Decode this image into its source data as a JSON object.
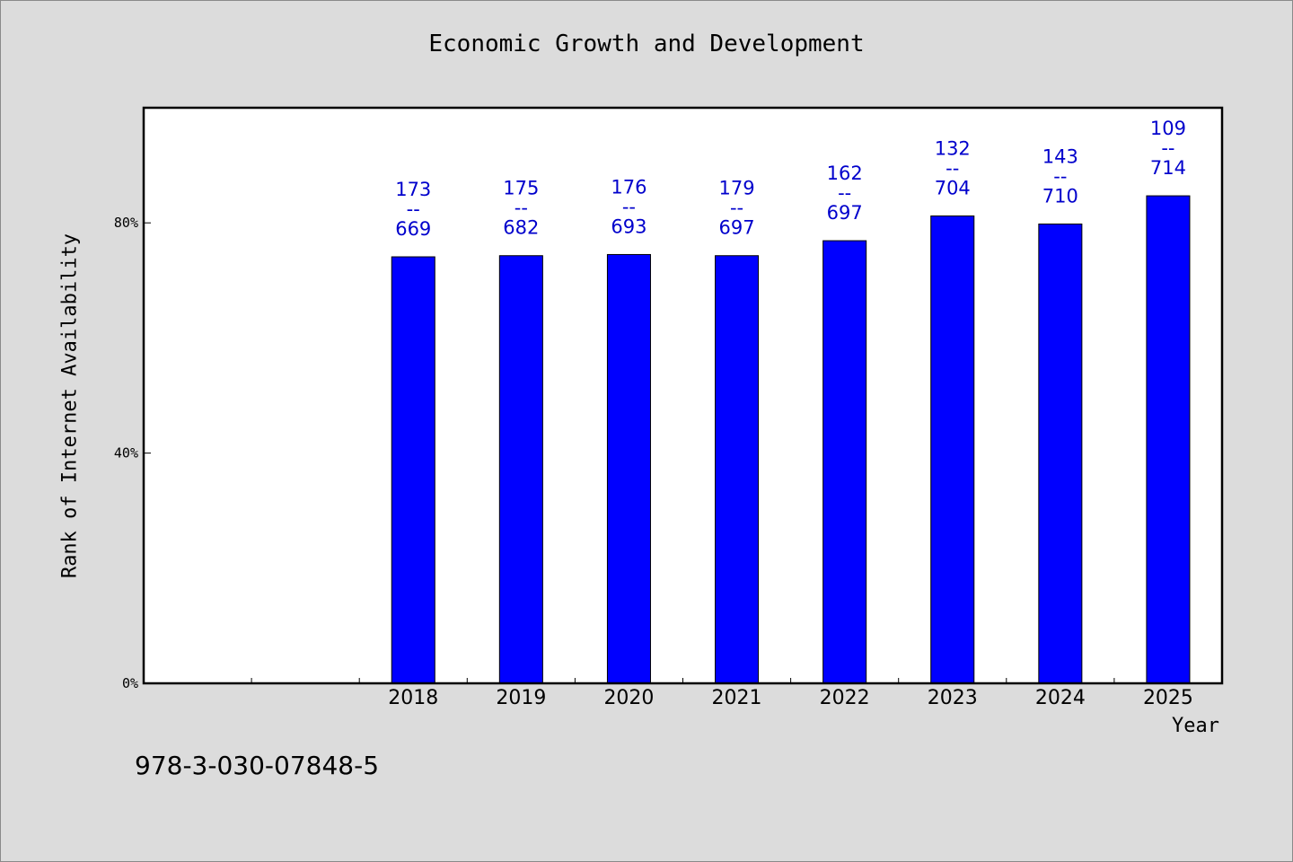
{
  "chart_data": {
    "type": "bar",
    "title": "Economic Growth and Development",
    "xlabel": "Year",
    "ylabel": "Rank of Internet Availability",
    "categories": [
      "2018",
      "2019",
      "2020",
      "2021",
      "2022",
      "2023",
      "2024",
      "2025"
    ],
    "values": [
      74.1,
      74.3,
      74.5,
      74.3,
      76.9,
      81.2,
      79.8,
      84.7
    ],
    "labels": [
      {
        "top": "173",
        "sep": "--",
        "bottom": "669"
      },
      {
        "top": "175",
        "sep": "--",
        "bottom": "682"
      },
      {
        "top": "176",
        "sep": "--",
        "bottom": "693"
      },
      {
        "top": "179",
        "sep": "--",
        "bottom": "697"
      },
      {
        "top": "162",
        "sep": "--",
        "bottom": "697"
      },
      {
        "top": "132",
        "sep": "--",
        "bottom": "704"
      },
      {
        "top": "143",
        "sep": "--",
        "bottom": "710"
      },
      {
        "top": "109",
        "sep": "--",
        "bottom": "714"
      }
    ],
    "yticks": [
      0,
      40,
      80
    ],
    "ytick_labels": [
      "0%",
      "40%",
      "80%"
    ],
    "ylim": [
      0,
      100
    ],
    "x_slots": 10,
    "first_category_slot": 2,
    "grid": false,
    "colors": {
      "bar": "#0000ff",
      "data_label": "#0000cc",
      "plot_bg": "#ffffff",
      "page_bg": "#dcdcdc"
    }
  },
  "footer": {
    "code": "978-3-030-07848-5"
  }
}
